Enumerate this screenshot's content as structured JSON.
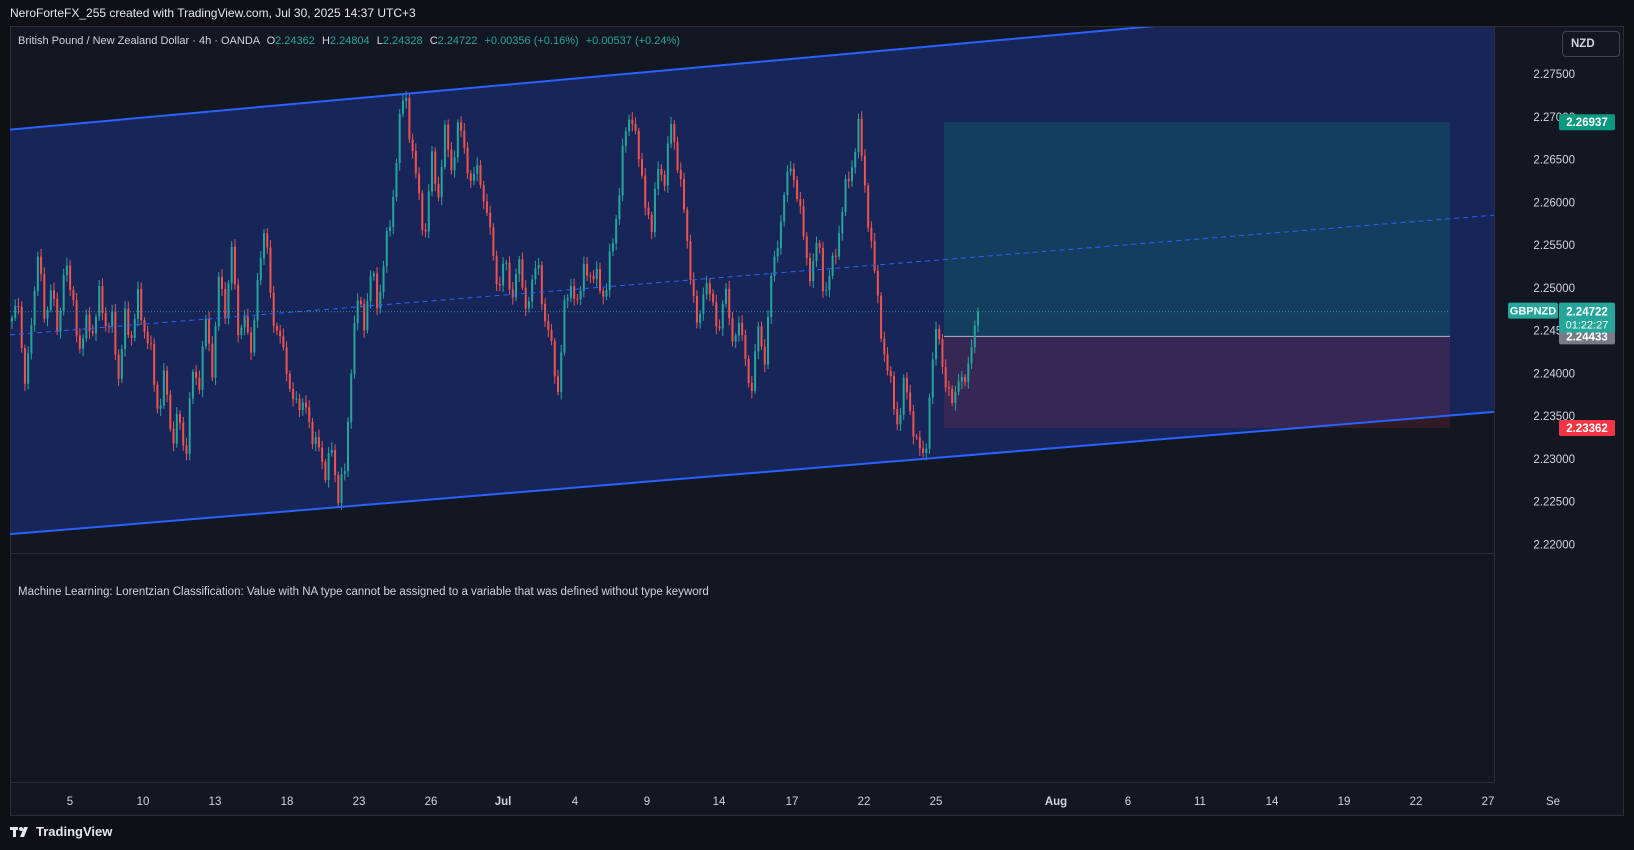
{
  "header": {
    "attribution": "NeroForteFX_255 created with TradingView.com, Jul 30, 2025 14:37 UTC+3"
  },
  "legend": {
    "symbol": "British Pound / New Zealand Dollar · 4h · OANDA",
    "open_label": "O",
    "open": "2.24362",
    "high_label": "H",
    "high": "2.24804",
    "low_label": "L",
    "low": "2.24328",
    "close_label": "C",
    "close": "2.24722",
    "change": "+0.00356 (+0.16%)",
    "change2": "+0.00537 (+0.24%)"
  },
  "currency_button": "NZD",
  "indicator_message": "Machine Learning: Lorentzian Classification: Value with NA type cannot be assigned to a variable that was defined without type keyword",
  "footer": {
    "brand": "TradingView"
  },
  "colors": {
    "up": "#26a69a",
    "down": "#ef5350",
    "channel": "#2962ff",
    "target": "#089981",
    "stop": "#f23645",
    "entry": "#787b86"
  },
  "chart_data": {
    "type": "candlestick",
    "symbol": "GBPNZD",
    "timeframe": "4h",
    "y_axis": {
      "ticks": [
        "2.27500",
        "2.27000",
        "2.26500",
        "2.26000",
        "2.25500",
        "2.25000",
        "2.24500",
        "2.24000",
        "2.23500",
        "2.23000",
        "2.22500",
        "2.22000"
      ],
      "range": [
        2.219,
        2.2805
      ]
    },
    "x_axis": {
      "ticks": [
        "5",
        "10",
        "13",
        "18",
        "23",
        "26",
        "Jul",
        "4",
        "9",
        "14",
        "17",
        "22",
        "25",
        "Aug",
        "6",
        "11",
        "14",
        "19",
        "22",
        "27",
        "Se"
      ]
    },
    "last_price": {
      "symbol_label": "GBPNZD",
      "value": "2.24722",
      "countdown": "01:22:27"
    },
    "position": {
      "target": "2.26937",
      "entry": "2.24433",
      "stop": "2.23362"
    },
    "channel": {
      "upper": [
        [
          0,
          2.2685
        ],
        [
          1,
          2.2842
        ]
      ],
      "middle": [
        [
          0,
          2.2445
        ],
        [
          1,
          2.2585
        ]
      ],
      "lower": [
        [
          0,
          2.2212
        ],
        [
          1,
          2.2355
        ]
      ]
    },
    "path": [
      2.2465,
      2.2475,
      2.239,
      2.2455,
      2.256,
      2.244,
      2.252,
      2.243,
      2.2545,
      2.249,
      2.242,
      2.247,
      2.243,
      2.251,
      2.244,
      2.248,
      2.238,
      2.248,
      2.243,
      2.25,
      2.244,
      2.242,
      2.235,
      2.24,
      2.232,
      2.235,
      2.23,
      2.24,
      2.238,
      2.247,
      2.239,
      2.252,
      2.246,
      2.256,
      2.243,
      2.248,
      2.241,
      2.253,
      2.257,
      2.247,
      2.245,
      2.241,
      2.238,
      2.235,
      2.238,
      2.231,
      2.233,
      2.227,
      2.232,
      2.225,
      2.229,
      2.242,
      2.249,
      2.246,
      2.252,
      2.248,
      2.254,
      2.259,
      2.268,
      2.2735,
      2.266,
      2.261,
      2.256,
      2.265,
      2.261,
      2.268,
      2.264,
      2.269,
      2.266,
      2.262,
      2.264,
      2.26,
      2.255,
      2.25,
      2.253,
      2.249,
      2.253,
      2.248,
      2.25,
      2.253,
      2.246,
      2.243,
      2.238,
      2.248,
      2.251,
      2.247,
      2.254,
      2.25,
      2.252,
      2.248,
      2.255,
      2.26,
      2.268,
      2.271,
      2.265,
      2.261,
      2.256,
      2.265,
      2.262,
      2.27,
      2.264,
      2.258,
      2.251,
      2.244,
      2.252,
      2.248,
      2.245,
      2.25,
      2.244,
      2.246,
      2.242,
      2.238,
      2.245,
      2.242,
      2.251,
      2.256,
      2.261,
      2.265,
      2.26,
      2.255,
      2.251,
      2.256,
      2.249,
      2.252,
      2.256,
      2.261,
      2.264,
      2.269,
      2.262,
      2.255,
      2.248,
      2.242,
      2.238,
      2.234,
      2.239,
      2.235,
      2.231,
      2.23,
      2.24,
      2.246,
      2.239,
      2.236,
      2.24,
      2.238,
      2.244,
      2.2472
    ]
  }
}
